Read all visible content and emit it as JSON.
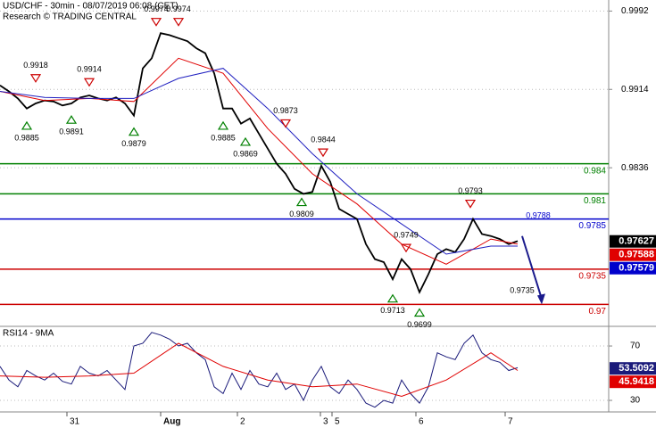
{
  "chart_data": [
    {
      "type": "line",
      "title": "USD/CHF - 30min - 08/07/2019 06:08 (CET)",
      "subtitle": "Research © TRADING CENTRAL",
      "xlim": [
        0,
        68.2
      ],
      "ylim": [
        0.9679,
        1.0003
      ],
      "yticks": [
        0.9992,
        0.9914,
        0.9836
      ],
      "grid": true,
      "series": [
        {
          "color": "#000000",
          "x": [
            0,
            1,
            2,
            3,
            4,
            5,
            6,
            7,
            8,
            9,
            10,
            11,
            12,
            13,
            14,
            15,
            16,
            17,
            18,
            19,
            20,
            21,
            22,
            23,
            24,
            25,
            26,
            27,
            28,
            29,
            30,
            31,
            32,
            33,
            34,
            35,
            36,
            37,
            38,
            39,
            40,
            41,
            42,
            43,
            44,
            45,
            46,
            47,
            48,
            49,
            50,
            51,
            52,
            53,
            54,
            55,
            56,
            57,
            58
          ],
          "values": [
            0.9918,
            0.9912,
            0.9905,
            0.9895,
            0.99,
            0.9903,
            0.9902,
            0.9898,
            0.99,
            0.9906,
            0.9908,
            0.9905,
            0.9903,
            0.9906,
            0.99,
            0.9888,
            0.9935,
            0.9945,
            0.997,
            0.9968,
            0.9965,
            0.9962,
            0.9955,
            0.995,
            0.993,
            0.9895,
            0.9895,
            0.988,
            0.9885,
            0.987,
            0.9855,
            0.984,
            0.983,
            0.9815,
            0.981,
            0.9812,
            0.9838,
            0.9822,
            0.9795,
            0.979,
            0.9785,
            0.976,
            0.9745,
            0.9742,
            0.9725,
            0.9745,
            0.9735,
            0.9712,
            0.973,
            0.975,
            0.9755,
            0.9752,
            0.9765,
            0.9785,
            0.977,
            0.9768,
            0.9765,
            0.976,
            0.9763
          ]
        },
        {
          "color": "#e00000",
          "x": [
            0,
            5,
            10,
            15,
            20,
            25,
            30,
            35,
            40,
            45,
            50,
            55,
            58
          ],
          "values": [
            0.9912,
            0.9903,
            0.9905,
            0.9902,
            0.9945,
            0.993,
            0.9875,
            0.983,
            0.98,
            0.976,
            0.974,
            0.9765,
            0.976
          ]
        },
        {
          "color": "#2020c0",
          "x": [
            0,
            5,
            10,
            15,
            20,
            25,
            30,
            35,
            40,
            45,
            50,
            55,
            58
          ],
          "values": [
            0.9912,
            0.9906,
            0.9905,
            0.9905,
            0.9925,
            0.9935,
            0.9895,
            0.985,
            0.981,
            0.978,
            0.975,
            0.9758,
            0.9758
          ]
        }
      ],
      "levels": [
        {
          "value": 0.984,
          "color": "#008000"
        },
        {
          "value": 0.981,
          "color": "#008000"
        },
        {
          "value": 0.9785,
          "color": "#0000cc"
        },
        {
          "value": 0.9735,
          "color": "#cc0000"
        },
        {
          "value": 0.97,
          "color": "#cc0000"
        }
      ],
      "tags": [
        {
          "value": 0.97627,
          "color": "#000000"
        },
        {
          "value": 0.97588,
          "color": "#e00000"
        },
        {
          "value": 0.97579,
          "color": "#0000cc"
        }
      ],
      "annotations": [
        {
          "x": 17.5,
          "value": 0.9974,
          "dir": "down"
        },
        {
          "x": 20,
          "value": 0.9974,
          "dir": "down"
        },
        {
          "x": 4,
          "value": 0.9918,
          "dir": "down"
        },
        {
          "x": 10,
          "value": 0.9914,
          "dir": "down"
        },
        {
          "x": 3,
          "value": 0.9885,
          "dir": "up"
        },
        {
          "x": 8,
          "value": 0.9891,
          "dir": "up"
        },
        {
          "x": 15,
          "value": 0.9879,
          "dir": "up"
        },
        {
          "x": 25,
          "value": 0.9885,
          "dir": "up"
        },
        {
          "x": 27.5,
          "value": 0.9869,
          "dir": "up"
        },
        {
          "x": 32,
          "value": 0.9873,
          "dir": "down"
        },
        {
          "x": 36.2,
          "value": 0.9844,
          "dir": "down"
        },
        {
          "x": 33.8,
          "value": 0.9809,
          "dir": "up"
        },
        {
          "x": 52.7,
          "value": 0.9793,
          "dir": "down"
        },
        {
          "x": 45.5,
          "value": 0.9749,
          "dir": "down"
        },
        {
          "x": 44,
          "value": 0.9713,
          "dir": "up"
        },
        {
          "x": 47,
          "value": 0.9699,
          "dir": "up"
        },
        {
          "x": 60.3,
          "value": 0.9788,
          "dir": "level",
          "marker": false
        },
        {
          "x": 58.5,
          "value": 0.9735,
          "dir": "up",
          "marker": false
        }
      ],
      "forecast": {
        "x": [
          58.5,
          60.7
        ],
        "values": [
          0.9768,
          0.97
        ],
        "color": "#1a1a8c"
      }
    },
    {
      "type": "line",
      "title": "RSI14 - 9MA",
      "xlim": [
        0,
        68.2
      ],
      "ylim": [
        21.5,
        83.8
      ],
      "yticks": [
        70,
        30
      ],
      "grid": true,
      "xticks": [
        {
          "value": 7.5,
          "label": "31"
        },
        {
          "value": 18,
          "label": "Aug"
        },
        {
          "value": 26.6,
          "label": "2"
        },
        {
          "value": 35.9,
          "label": "3"
        },
        {
          "value": 37.2,
          "label": "5"
        },
        {
          "value": 46.6,
          "label": "6"
        },
        {
          "value": 56.6,
          "label": "7"
        }
      ],
      "series": [
        {
          "color": "#1a1a7a",
          "x": [
            0,
            1,
            2,
            3,
            4,
            5,
            6,
            7,
            8,
            9,
            10,
            11,
            12,
            13,
            14,
            15,
            16,
            17,
            18,
            19,
            20,
            21,
            22,
            23,
            24,
            25,
            26,
            27,
            28,
            29,
            30,
            31,
            32,
            33,
            34,
            35,
            36,
            37,
            38,
            39,
            40,
            41,
            42,
            43,
            44,
            45,
            46,
            47,
            48,
            49,
            50,
            51,
            52,
            53,
            54,
            55,
            56,
            57,
            58
          ],
          "values": [
            55,
            45,
            40,
            52,
            48,
            45,
            50,
            44,
            42,
            55,
            50,
            48,
            52,
            45,
            38,
            70,
            72,
            80,
            78,
            75,
            70,
            72,
            65,
            60,
            40,
            35,
            50,
            38,
            52,
            42,
            40,
            50,
            38,
            42,
            30,
            45,
            55,
            40,
            35,
            45,
            38,
            28,
            25,
            30,
            28,
            45,
            35,
            28,
            40,
            65,
            62,
            60,
            72,
            78,
            65,
            60,
            58,
            52,
            54
          ]
        },
        {
          "color": "#e00000",
          "x": [
            0,
            5,
            10,
            15,
            20,
            25,
            30,
            35,
            40,
            45,
            50,
            55,
            58
          ],
          "values": [
            48,
            47,
            48,
            50,
            72,
            55,
            45,
            40,
            42,
            33,
            45,
            65,
            52
          ]
        }
      ],
      "tags": [
        {
          "value": 53.5092,
          "color": "#1a1a7a"
        },
        {
          "value": 45.9418,
          "color": "#e00000"
        }
      ]
    }
  ]
}
